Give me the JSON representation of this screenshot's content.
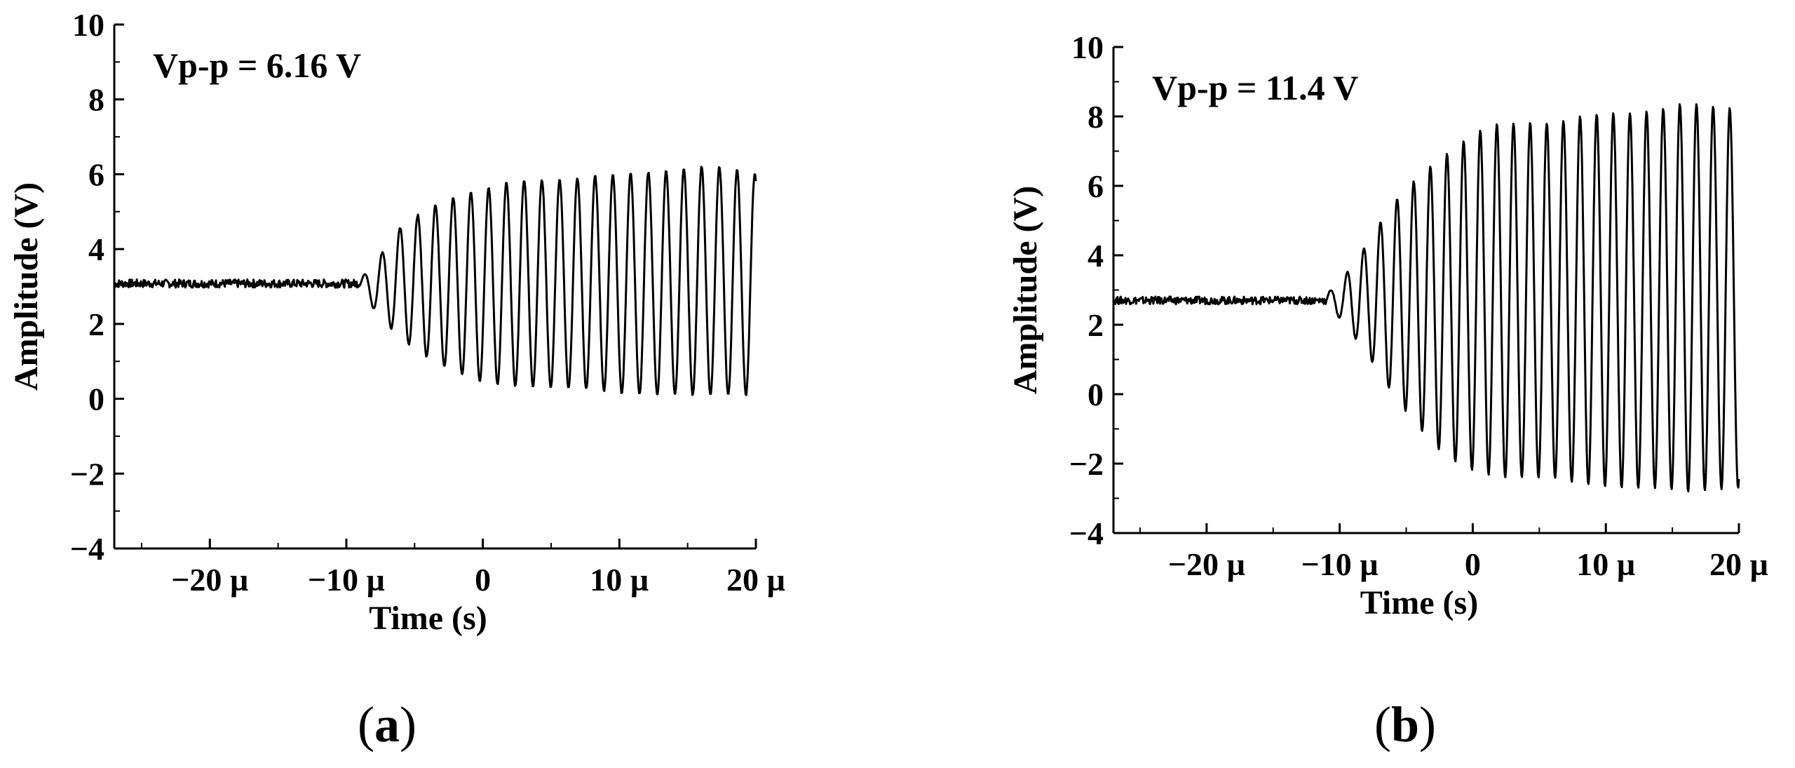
{
  "chart_data": [
    {
      "type": "line",
      "panel_label": "a",
      "annotation": "Vp-p = 6.16 V",
      "xlabel": "Time (s)",
      "ylabel": "Amplitude (V)",
      "xlim": [
        -27,
        20
      ],
      "ylim": [
        -4,
        10
      ],
      "x_ticks": [
        -20,
        -10,
        0,
        10,
        20
      ],
      "x_tick_labels": [
        "−20 µ",
        "−10 µ",
        "0",
        "10 µ",
        "20 µ"
      ],
      "y_ticks": [
        -4,
        -2,
        0,
        2,
        4,
        6,
        8,
        10
      ],
      "y_tick_labels": [
        "−4",
        "−2",
        "0",
        "2",
        "4",
        "6",
        "8",
        "10"
      ],
      "x_unit_scale": "µs",
      "series": [
        {
          "baseline_value": 3.08,
          "baseline_until_x": -9,
          "oscillation_period": 1.3,
          "envelope_x": [
            -9,
            -8,
            -6,
            -4,
            -2,
            0,
            2,
            4,
            6,
            8,
            10,
            12,
            14,
            16,
            18,
            20
          ],
          "envelope_max": [
            3.2,
            3.6,
            4.6,
            5.1,
            5.4,
            5.6,
            5.8,
            5.85,
            5.85,
            5.95,
            6.0,
            6.05,
            6.1,
            6.2,
            6.2,
            6.0
          ],
          "envelope_min": [
            2.9,
            2.4,
            1.6,
            1.1,
            0.7,
            0.45,
            0.35,
            0.32,
            0.3,
            0.25,
            0.15,
            0.1,
            0.1,
            0.1,
            0.1,
            0.1
          ]
        }
      ],
      "grid": false,
      "color": "#000000"
    },
    {
      "type": "line",
      "panel_label": "b",
      "annotation": "Vp-p = 11.4 V",
      "xlabel": "Time (s)",
      "ylabel": "Amplitude (V)",
      "xlim": [
        -27,
        20
      ],
      "ylim": [
        -4,
        10
      ],
      "x_ticks": [
        -20,
        -10,
        0,
        10,
        20
      ],
      "x_tick_labels": [
        "−20 µ",
        "−10 µ",
        "0",
        "10 µ",
        "20 µ"
      ],
      "y_ticks": [
        -4,
        -2,
        0,
        2,
        4,
        6,
        8,
        10
      ],
      "y_tick_labels": [
        "−4",
        "−2",
        "0",
        "2",
        "4",
        "6",
        "8",
        "10"
      ],
      "x_unit_scale": "µs",
      "series": [
        {
          "baseline_value": 2.7,
          "baseline_until_x": -11,
          "oscillation_period": 1.25,
          "envelope_x": [
            -11,
            -10,
            -8,
            -6,
            -4,
            -2,
            0,
            2,
            4,
            6,
            8,
            10,
            12,
            14,
            16,
            18,
            20
          ],
          "envelope_max": [
            2.9,
            3.2,
            4.3,
            5.5,
            6.3,
            6.9,
            7.5,
            7.8,
            7.8,
            7.8,
            8.0,
            8.1,
            8.1,
            8.2,
            8.4,
            8.3,
            8.2
          ],
          "envelope_min": [
            2.5,
            2.2,
            1.2,
            0.0,
            -1.0,
            -1.8,
            -2.2,
            -2.4,
            -2.4,
            -2.4,
            -2.6,
            -2.65,
            -2.7,
            -2.7,
            -2.8,
            -2.75,
            -2.7
          ]
        }
      ],
      "grid": false,
      "color": "#000000"
    }
  ]
}
